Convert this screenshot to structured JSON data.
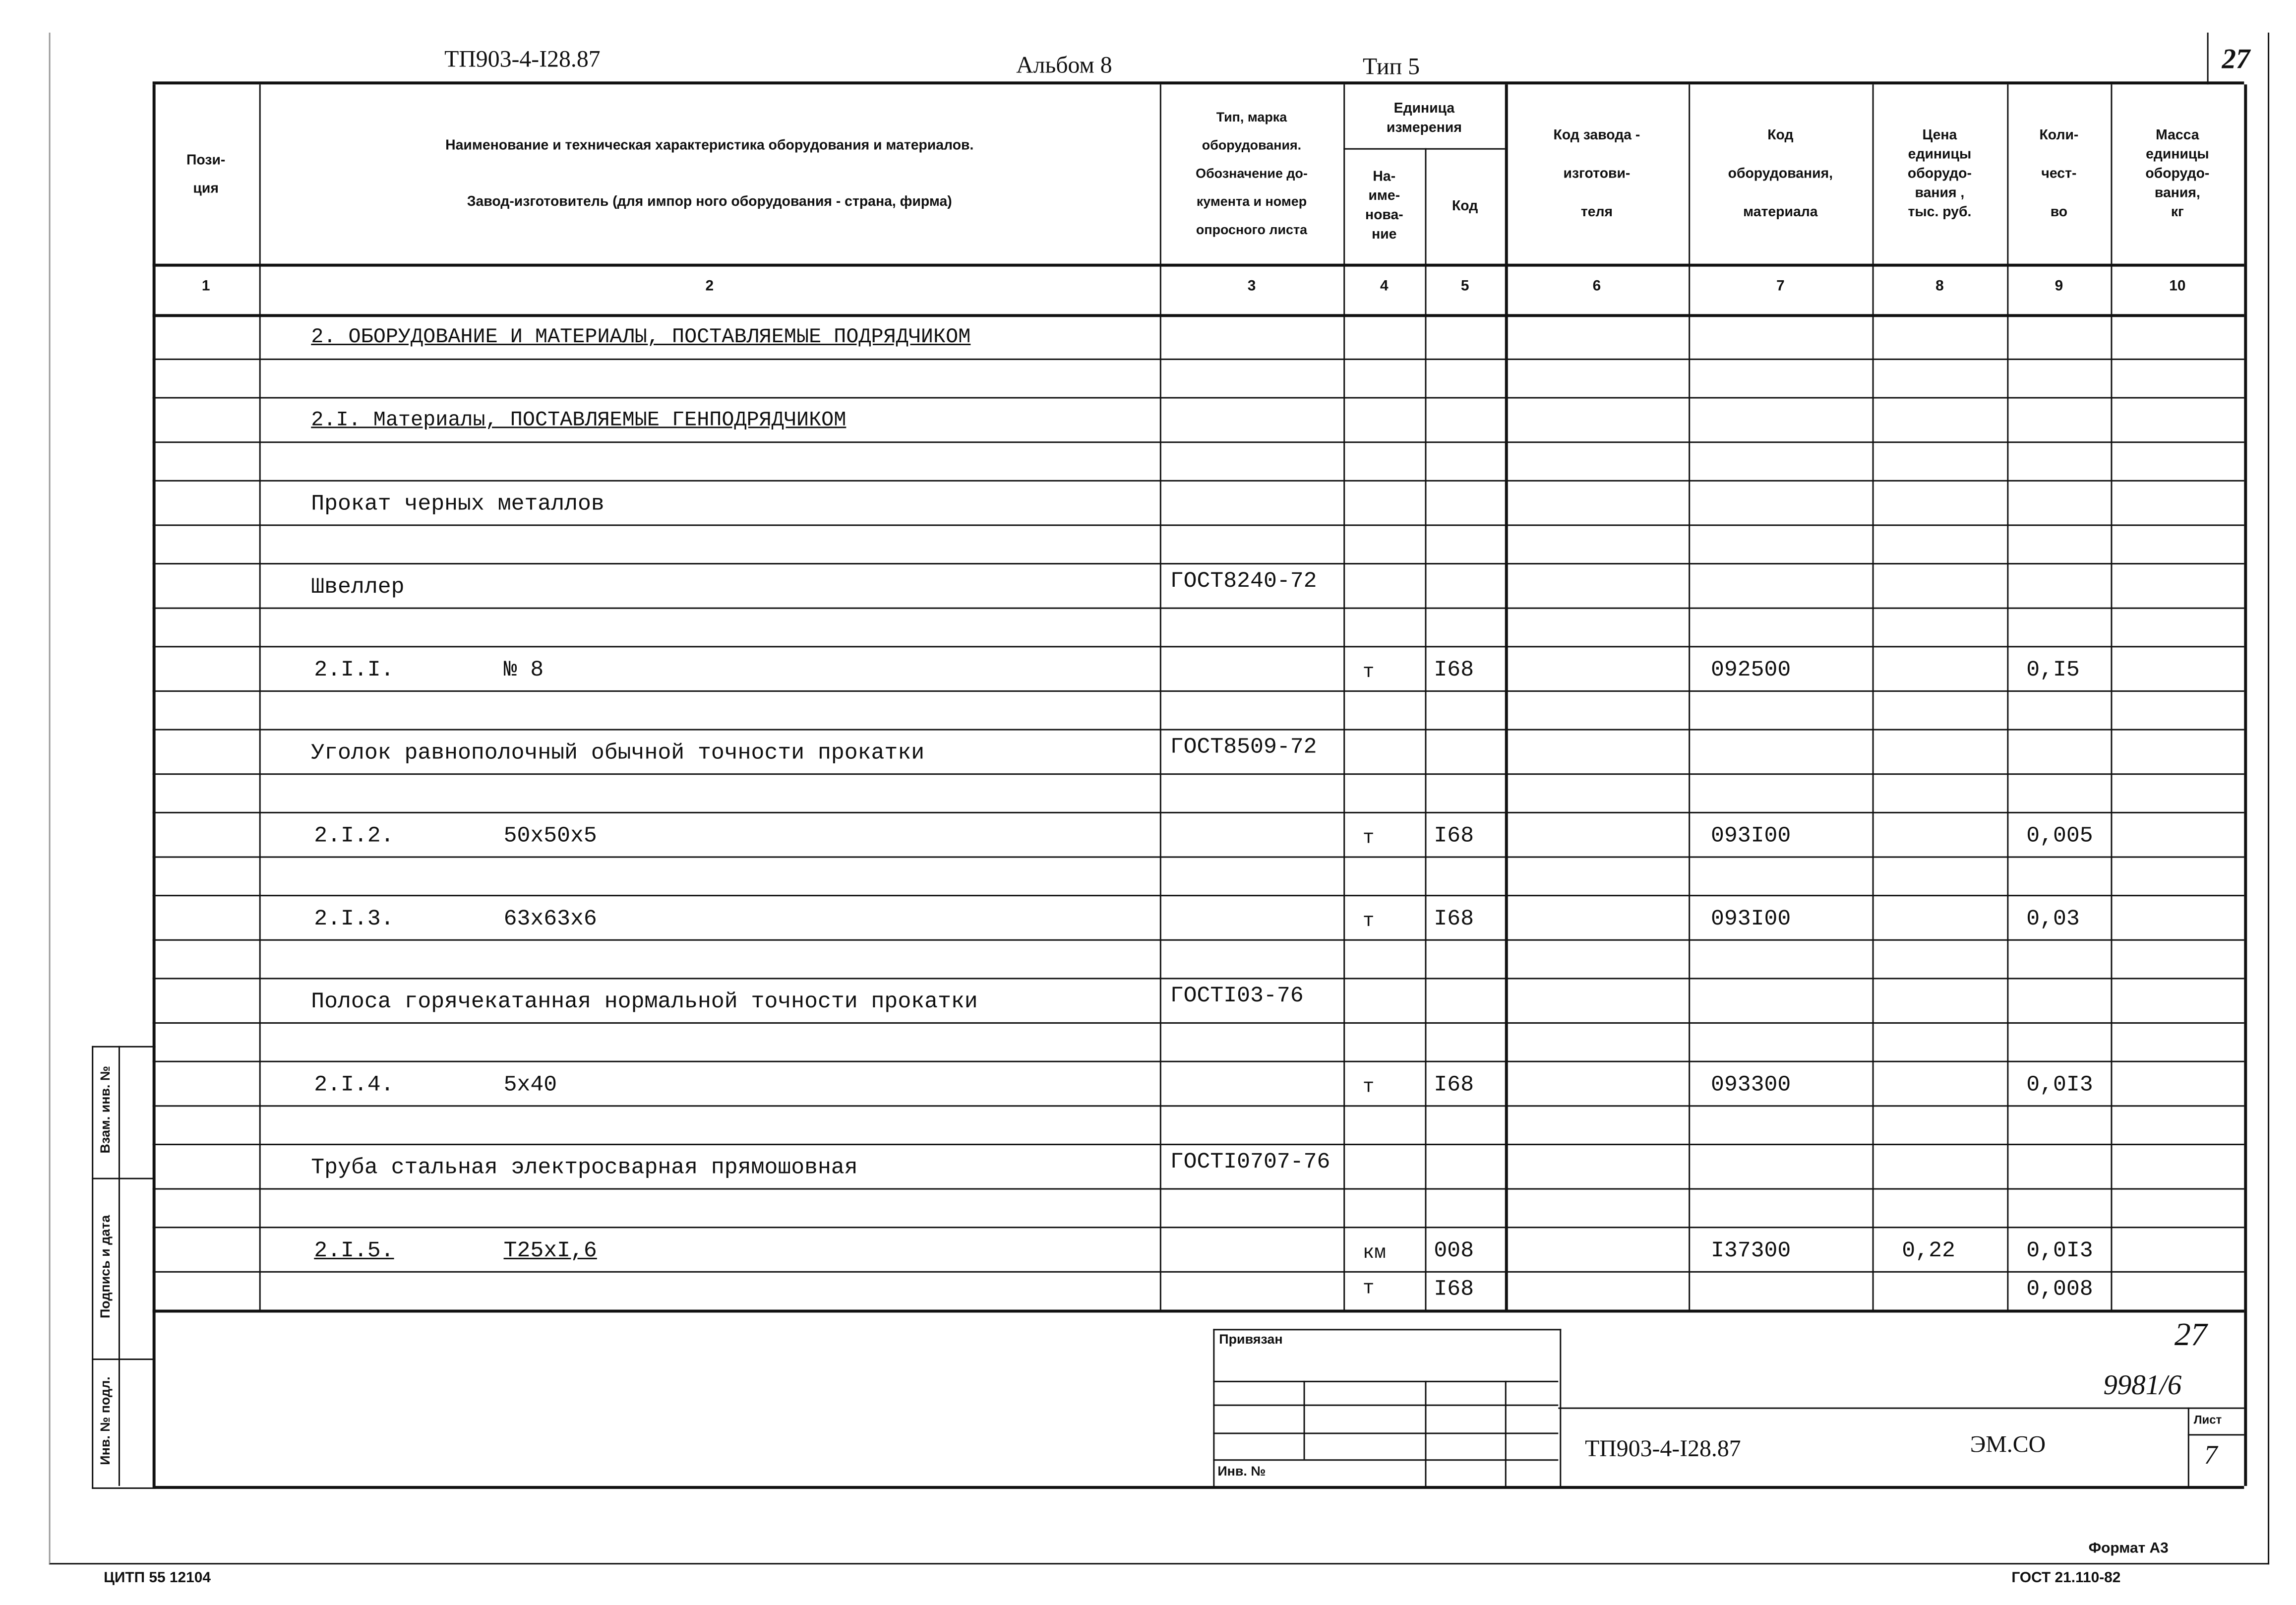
{
  "header": {
    "doc_code": "ТП903-4-I28.87",
    "album": "Альбом 8",
    "type": "Тип 5",
    "page_number": "27"
  },
  "columns": [
    {
      "label": "Пози-\nция",
      "number": "1"
    },
    {
      "label": "Наименование и техническая характеристика  оборудования и материалов.\n\nЗавод-изготовитель  (для импор ного оборудования -  страна, фирма)",
      "number": "2"
    },
    {
      "label": "Тип,      марка\nоборудования.\nОбозначение  до-\nкумента  и  номер\nопросного листа",
      "number": "3"
    },
    {
      "label": "На-\nиме-\nнова-\nние",
      "number": "4"
    },
    {
      "label": "Код",
      "number": "5"
    },
    {
      "label": "Код  завода -\n\nизготови-\n\nтеля",
      "number": "6"
    },
    {
      "label": "Код\n\nоборудования,\n\nматериала",
      "number": "7"
    },
    {
      "label": "Цена\nединицы\nоборудо-\nвания ,\nтыс. руб.",
      "number": "8"
    },
    {
      "label": "Коли-\n\nчест-\n\nво",
      "number": "9"
    },
    {
      "label": "Масса\nединицы\nоборудо-\nвания,\nкг",
      "number": "10"
    }
  ],
  "unit_group_label": "Единица\nизмерения",
  "rows": [
    {
      "name": "2. ОБОРУДОВАНИЕ И МАТЕРИАЛЫ, ПОСТАВЛЯЕМЫЕ ПОДРЯДЧИКОМ",
      "spec": "",
      "doc": "",
      "unit": "",
      "unit_code": "",
      "mat_code": "",
      "price": "",
      "qty": "",
      "underline": true
    },
    {
      "name": "2.I. Материалы, ПОСТАВЛЯЕМЫЕ ГЕНПОДРЯДЧИКОМ",
      "spec": "",
      "doc": "",
      "unit": "",
      "unit_code": "",
      "mat_code": "",
      "price": "",
      "qty": "",
      "underline": true
    },
    {
      "name": "Прокат черных металлов",
      "spec": "",
      "doc": "",
      "unit": "",
      "unit_code": "",
      "mat_code": "",
      "price": "",
      "qty": ""
    },
    {
      "name": "Швеллер",
      "spec": "",
      "doc": "ГОСТ8240-72",
      "unit": "",
      "unit_code": "",
      "mat_code": "",
      "price": "",
      "qty": ""
    },
    {
      "name": "2.I.I.",
      "spec": "№ 8",
      "doc": "",
      "unit": "т",
      "unit_code": "I68",
      "mat_code": "092500",
      "price": "",
      "qty": "0,I5"
    },
    {
      "name": "Уголок равнополочный обычной точности прокатки",
      "spec": "",
      "doc": "ГОСТ8509-72",
      "unit": "",
      "unit_code": "",
      "mat_code": "",
      "price": "",
      "qty": ""
    },
    {
      "name": "2.I.2.",
      "spec": "50x50x5",
      "doc": "",
      "unit": "т",
      "unit_code": "I68",
      "mat_code": "093I00",
      "price": "",
      "qty": "0,005"
    },
    {
      "name": "2.I.3.",
      "spec": "63x63x6",
      "doc": "",
      "unit": "т",
      "unit_code": "I68",
      "mat_code": "093I00",
      "price": "",
      "qty": "0,03"
    },
    {
      "name": "Полоса горячекатанная нормальной точности прокатки",
      "spec": "",
      "doc": "ГОСТI03-76",
      "unit": "",
      "unit_code": "",
      "mat_code": "",
      "price": "",
      "qty": ""
    },
    {
      "name": "2.I.4.",
      "spec": "5x40",
      "doc": "",
      "unit": "т",
      "unit_code": "I68",
      "mat_code": "093300",
      "price": "",
      "qty": "0,0I3"
    },
    {
      "name": "Труба стальная электросварная прямошовная",
      "spec": "",
      "doc": "ГОСТI0707-76",
      "unit": "",
      "unit_code": "",
      "mat_code": "",
      "price": "",
      "qty": ""
    },
    {
      "name": "2.I.5.",
      "spec": "Т25xI,6",
      "doc": "",
      "unit": "км",
      "unit_code": "008",
      "mat_code": "I37300",
      "price": "0,22",
      "qty": "0,0I3",
      "underline": true
    }
  ],
  "extra_row": {
    "unit": "т",
    "unit_code": "I68",
    "qty": "0,008"
  },
  "stamp": {
    "attached_label": "Привязан",
    "inv_label": "Инв. №",
    "doc_code": "ТП903-4-I28.87",
    "mark": "ЭМ.СО",
    "sheet_label": "Лист",
    "sheet_number": "7",
    "handwritten_page": "27",
    "handwritten_number": "9981/6"
  },
  "side_stamp": {
    "replace_inv": "Взам. инв. №",
    "signature_date": "Подпись и дата",
    "original_inv": "Инв. № подл."
  },
  "footer": {
    "left": "ЦИТП  55 12104",
    "format": "Формат А3",
    "standard": "ГОСТ 21.110-82"
  }
}
